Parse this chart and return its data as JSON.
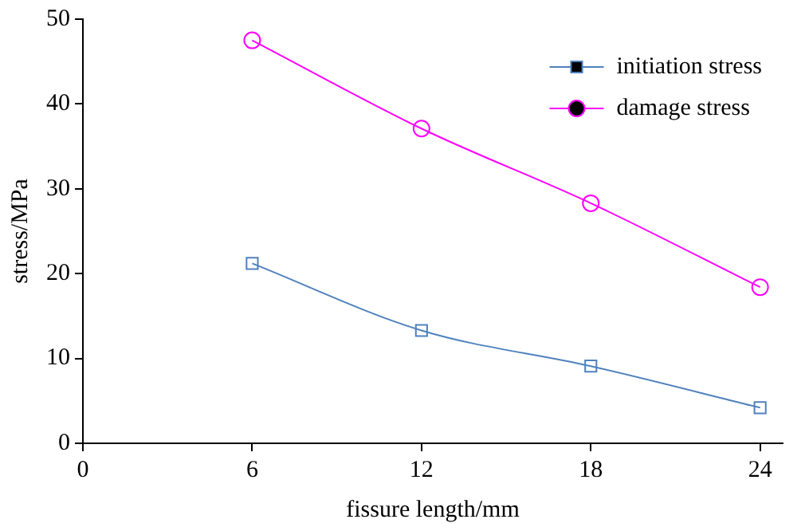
{
  "chart_data": {
    "type": "line",
    "xlabel": "fissure length/mm",
    "ylabel": "stress/MPa",
    "x": [
      6,
      12,
      18,
      24
    ],
    "xlim": [
      0,
      24.8
    ],
    "xticks": [
      0,
      6,
      12,
      18,
      24
    ],
    "ylim": [
      0,
      50
    ],
    "yticks": [
      0,
      10,
      20,
      30,
      40,
      50
    ],
    "grid": false,
    "legend": "top right",
    "line_style": "solid",
    "series": [
      {
        "name": "initiation stress",
        "color": "#4f81bd",
        "marker": "square",
        "values": [
          21.2,
          13.3,
          9.1,
          4.2
        ]
      },
      {
        "name": "damage stress",
        "color": "#ff00ff",
        "marker": "circle",
        "values": [
          47.5,
          37.1,
          28.3,
          18.4
        ]
      }
    ]
  }
}
